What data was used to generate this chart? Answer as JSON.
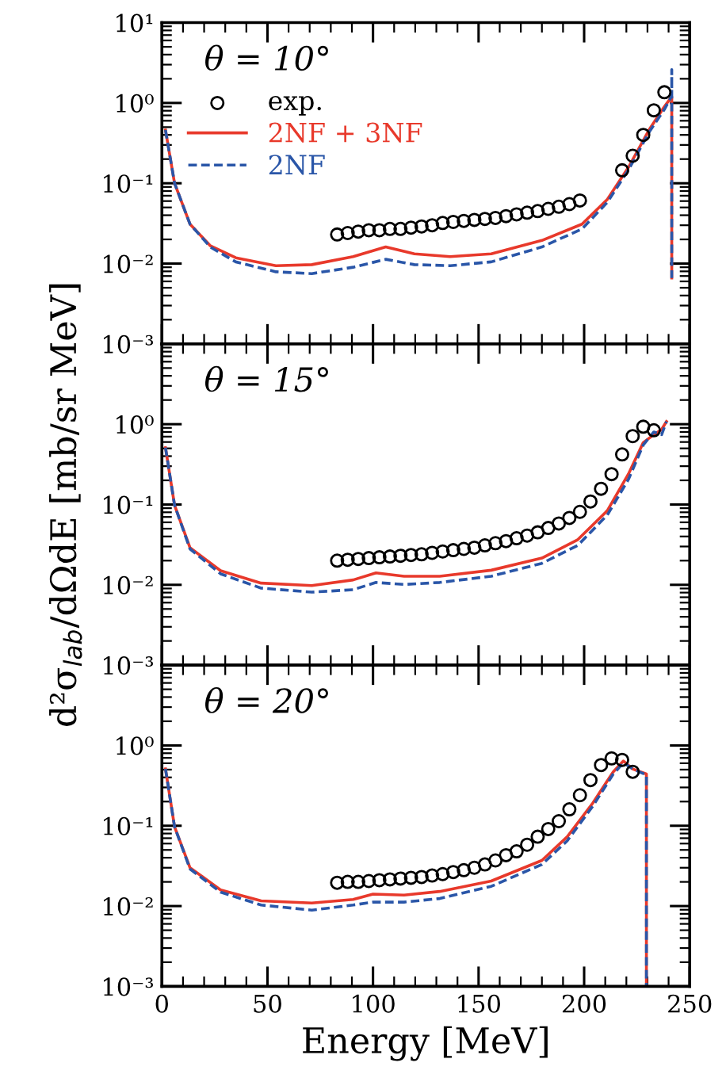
{
  "chart_data": [
    {
      "type": "line",
      "title": "θ = 10°",
      "log": "y",
      "xlim": [
        0,
        250
      ],
      "xticks": [
        0,
        50,
        100,
        150,
        200,
        250
      ],
      "ylim": [
        0.001,
        10
      ],
      "yticks": [
        {
          "value": 0.001,
          "label": "10⁻³"
        },
        {
          "value": 0.01,
          "label": "10⁻²"
        },
        {
          "value": 0.1,
          "label": "10⁻¹"
        },
        {
          "value": 1,
          "label": "10⁰"
        },
        {
          "value": 10,
          "label": "10¹"
        }
      ],
      "tick_labels": "y",
      "legend": "top left",
      "grid": false,
      "series": [
        {
          "name": "exp.",
          "type": "scatter",
          "marker": "circle",
          "color": "#000000",
          "x": [
            83,
            88,
            93,
            98,
            103,
            108,
            113,
            118,
            123,
            128,
            133,
            138,
            143,
            148,
            153,
            158,
            163,
            168,
            173,
            178,
            183,
            188,
            193,
            198,
            218,
            223,
            228,
            233,
            238
          ],
          "values": [
            0.023,
            0.024,
            0.025,
            0.026,
            0.026,
            0.027,
            0.027,
            0.028,
            0.029,
            0.03,
            0.032,
            0.033,
            0.034,
            0.035,
            0.036,
            0.037,
            0.039,
            0.041,
            0.043,
            0.045,
            0.048,
            0.051,
            0.055,
            0.061,
            0.145,
            0.22,
            0.4,
            0.81,
            1.36
          ]
        },
        {
          "name": "2NF + 3NF",
          "line_style": "solid",
          "color": "#e8392b",
          "x": [
            1.7,
            6,
            13.3,
            23,
            35,
            54,
            71,
            90.6,
            106,
            119.6,
            136.5,
            156,
            180,
            199,
            211,
            221,
            230.7,
            238,
            241.5,
            241.5
          ],
          "values": [
            0.46,
            0.1,
            0.031,
            0.0166,
            0.0118,
            0.0094,
            0.0097,
            0.0122,
            0.0161,
            0.0132,
            0.0122,
            0.0132,
            0.0194,
            0.031,
            0.063,
            0.158,
            0.46,
            0.9,
            1.2,
            0.0066
          ]
        },
        {
          "name": "2NF",
          "line_style": "dashed",
          "color": "#2a56a8",
          "x": [
            1.7,
            6,
            13.3,
            23,
            35,
            54,
            71,
            90.6,
            106,
            119.6,
            136.5,
            156,
            180,
            199,
            211,
            221,
            230.7,
            238,
            241.5,
            241.5,
            241.5
          ],
          "values": [
            0.46,
            0.1,
            0.031,
            0.016,
            0.0105,
            0.0079,
            0.0075,
            0.009,
            0.0113,
            0.0097,
            0.0094,
            0.0105,
            0.0161,
            0.027,
            0.058,
            0.147,
            0.43,
            0.83,
            1.22,
            2.6,
            0.0066
          ]
        }
      ]
    },
    {
      "type": "line",
      "title": "θ = 15°",
      "ylabel": "d²σ$_{lab}$/dΩdE [mb/sr MeV]",
      "log": "y",
      "xlim": [
        0,
        250
      ],
      "xticks": [
        0,
        50,
        100,
        150,
        200,
        250
      ],
      "ylim": [
        0.001,
        10
      ],
      "yticks": [
        {
          "value": 0.001,
          "label": "10⁻³"
        },
        {
          "value": 0.01,
          "label": "10⁻²"
        },
        {
          "value": 0.1,
          "label": "10⁻¹"
        },
        {
          "value": 1,
          "label": "10⁰"
        },
        {
          "value": 10,
          "label": null
        }
      ],
      "tick_labels": "y",
      "grid": false,
      "series": [
        {
          "type": "scatter",
          "marker": "circle",
          "color": "#000000",
          "x": [
            83,
            88,
            93,
            98,
            103,
            108,
            113,
            118,
            123,
            128,
            133,
            138,
            143,
            148,
            153,
            158,
            163,
            168,
            173,
            178,
            183,
            188,
            193,
            198,
            203,
            208,
            213,
            218,
            223,
            228,
            233
          ],
          "values": [
            0.02,
            0.0205,
            0.021,
            0.0215,
            0.022,
            0.0225,
            0.023,
            0.0235,
            0.024,
            0.025,
            0.026,
            0.027,
            0.028,
            0.029,
            0.031,
            0.033,
            0.035,
            0.038,
            0.041,
            0.045,
            0.051,
            0.058,
            0.068,
            0.081,
            0.109,
            0.157,
            0.239,
            0.42,
            0.71,
            0.93,
            0.84
          ]
        },
        {
          "line_style": "solid",
          "color": "#e8392b",
          "x": [
            1.7,
            6,
            13.3,
            27.8,
            47,
            71,
            90.6,
            101.4,
            114.7,
            131.6,
            156,
            180,
            197,
            211,
            221,
            228,
            233,
            236.7,
            239
          ],
          "values": [
            0.51,
            0.098,
            0.029,
            0.015,
            0.0105,
            0.0098,
            0.0115,
            0.0141,
            0.0128,
            0.0128,
            0.0152,
            0.0215,
            0.0365,
            0.084,
            0.24,
            0.59,
            0.74,
            0.86,
            1.08
          ]
        },
        {
          "line_style": "dashed",
          "color": "#2a56a8",
          "x": [
            1.7,
            6,
            13.3,
            27.8,
            47,
            71,
            90.6,
            101.4,
            114.7,
            131.6,
            156,
            180,
            197,
            211,
            221,
            228,
            233,
            236.7,
            239
          ],
          "values": [
            0.51,
            0.098,
            0.028,
            0.0137,
            0.0091,
            0.0081,
            0.0087,
            0.0107,
            0.0101,
            0.0107,
            0.0128,
            0.0185,
            0.031,
            0.074,
            0.206,
            0.55,
            0.8,
            0.74,
            1.08
          ]
        }
      ]
    },
    {
      "type": "line",
      "title": "θ = 20°",
      "xlabel": "Energy [MeV]",
      "log": "y",
      "xlim": [
        0,
        250
      ],
      "xticks": [
        0,
        50,
        100,
        150,
        200,
        250
      ],
      "ylim": [
        0.001,
        10
      ],
      "yticks": [
        {
          "value": 0.001,
          "label": "10⁻³"
        },
        {
          "value": 0.01,
          "label": "10⁻²"
        },
        {
          "value": 0.1,
          "label": "10⁻¹"
        },
        {
          "value": 1,
          "label": "10⁰"
        },
        {
          "value": 10,
          "label": null
        }
      ],
      "grid": false,
      "series": [
        {
          "type": "scatter",
          "marker": "circle",
          "color": "#000000",
          "x": [
            83,
            88,
            93,
            98,
            103,
            108,
            113,
            118,
            123,
            128,
            133,
            138,
            143,
            148,
            153,
            158,
            163,
            168,
            173,
            178,
            183,
            188,
            193,
            198,
            203,
            208,
            213,
            218,
            223
          ],
          "values": [
            0.0195,
            0.02,
            0.02,
            0.0205,
            0.021,
            0.0215,
            0.022,
            0.0225,
            0.023,
            0.024,
            0.025,
            0.0265,
            0.028,
            0.03,
            0.033,
            0.037,
            0.043,
            0.048,
            0.058,
            0.073,
            0.091,
            0.114,
            0.16,
            0.24,
            0.37,
            0.57,
            0.69,
            0.66,
            0.47
          ]
        },
        {
          "line_style": "solid",
          "color": "#e8392b",
          "x": [
            1.7,
            6,
            13.3,
            27.8,
            47,
            71,
            90.6,
            100,
            114.7,
            131.6,
            156,
            180,
            192,
            204,
            213.8,
            218.6,
            223,
            229.5,
            229.5
          ],
          "values": [
            0.51,
            0.097,
            0.03,
            0.0159,
            0.0116,
            0.0109,
            0.0121,
            0.0141,
            0.0137,
            0.0152,
            0.0205,
            0.037,
            0.073,
            0.19,
            0.47,
            0.64,
            0.51,
            0.44,
            0.001
          ]
        },
        {
          "line_style": "dashed",
          "color": "#2a56a8",
          "x": [
            1.7,
            6,
            13.3,
            27.8,
            47,
            71,
            90.6,
            100,
            114.7,
            131.6,
            156,
            180,
            192,
            204,
            213.8,
            218.6,
            223,
            229.5,
            229.5
          ],
          "values": [
            0.51,
            0.097,
            0.029,
            0.0149,
            0.0103,
            0.0089,
            0.0103,
            0.0112,
            0.0112,
            0.0124,
            0.0176,
            0.033,
            0.065,
            0.174,
            0.44,
            0.61,
            0.51,
            0.43,
            0.001
          ]
        }
      ]
    }
  ]
}
